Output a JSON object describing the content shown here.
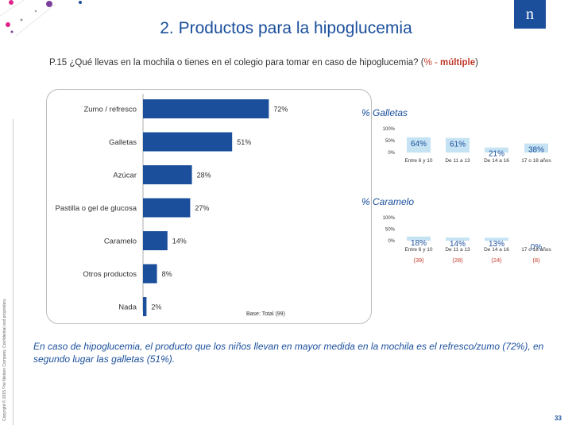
{
  "header": {
    "title": "2. Productos para la hipoglucemia",
    "logo_text": "n",
    "question_main": "P.15 ¿Qué llevas en la mochila o tienes en el colegio para tomar en caso de hipoglucemia? (",
    "question_multi": "% - ",
    "question_bold": "múltiple",
    "question_end": ")"
  },
  "sidebar": {
    "copyright": "Copyright © 2015 The Nielsen Company. Confidential and proprietary."
  },
  "colors": {
    "accent": "#1b4f9c",
    "bar": "#1b4f9c",
    "mini_fill": "#c6e3f4",
    "red": "#c0392b",
    "deco_pink": "#e0248a",
    "deco_purple": "#7a3f9c"
  },
  "chart_data": [
    {
      "type": "bar",
      "orientation": "horizontal",
      "title": "",
      "categories": [
        "Zumo / refresco",
        "Galletas",
        "Azúcar",
        "Pastilla o gel de glucosa",
        "Caramelo",
        "Otros productos",
        "Nada"
      ],
      "values": [
        72,
        51,
        28,
        27,
        14,
        8,
        2
      ],
      "value_labels": [
        "72%",
        "51%",
        "28%",
        "27%",
        "14%",
        "8%",
        "2%"
      ],
      "xlim": [
        0,
        100
      ]
    },
    {
      "type": "bar",
      "title": "% Galletas",
      "categories": [
        "Entre 6 y 10",
        "De 11 a 13",
        "De 14 a 16",
        "17 o 18 años"
      ],
      "values": [
        64,
        61,
        21,
        38
      ],
      "value_labels": [
        "64%",
        "61%",
        "21%",
        "38%"
      ],
      "yticks": [
        "100%",
        "50%",
        "0%"
      ],
      "ylim": [
        0,
        100
      ]
    },
    {
      "type": "bar",
      "title": "% Caramelo",
      "categories": [
        "Entre 6 y 10",
        "De 11 a 13",
        "De 14 a 16",
        "17 o 18 años"
      ],
      "values": [
        18,
        14,
        13,
        0
      ],
      "value_labels": [
        "18%",
        "14%",
        "13%",
        "0%"
      ],
      "bases": [
        "(39)",
        "(28)",
        "(24)",
        "(8)"
      ],
      "yticks": [
        "100%",
        "50%",
        "0%"
      ],
      "ylim": [
        0,
        100
      ]
    }
  ],
  "footer": {
    "base": "Base: Total (99)",
    "summary": "En caso de hipoglucemia, el producto que los niños llevan en mayor medida en la mochila es el refresco/zumo (72%), en segundo lugar las galletas (51%).",
    "page_number": "33"
  }
}
